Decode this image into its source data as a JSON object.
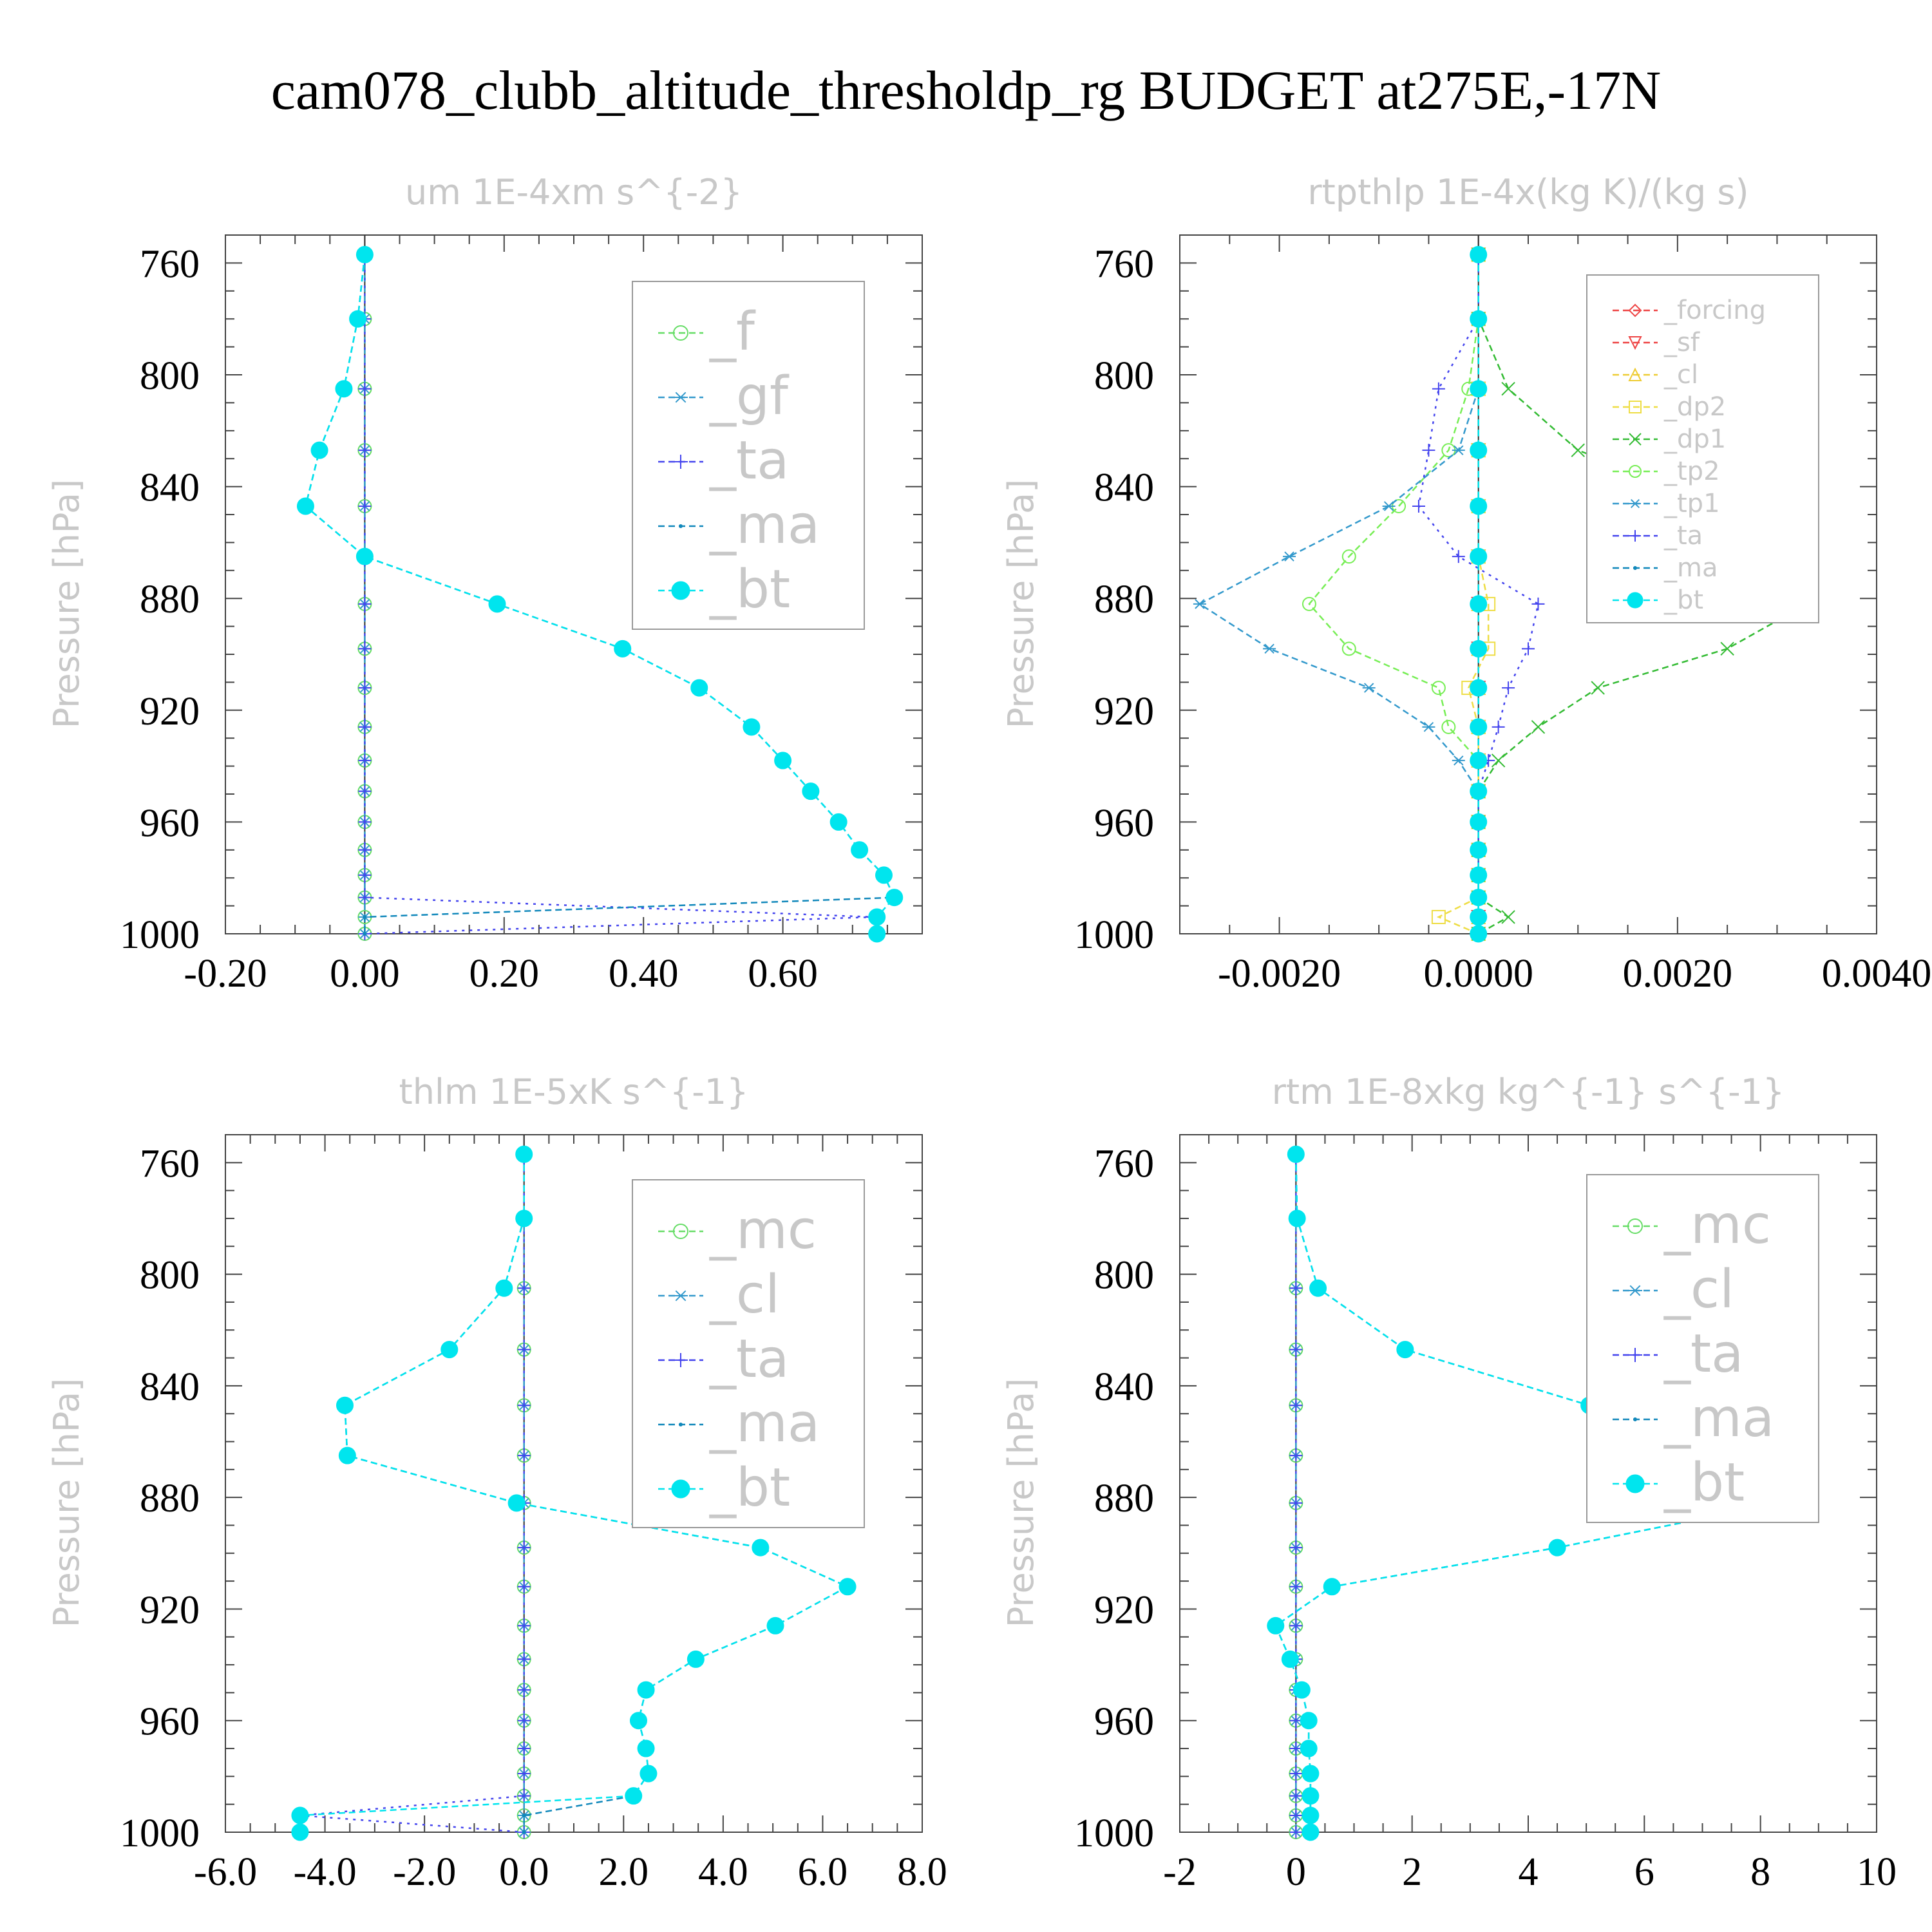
{
  "figure_title": "cam078_clubb_altitude_thresholdp_rg  BUDGET at275E,-17N",
  "ylabel": "Pressure [hPa]",
  "yticks": [
    "760",
    "800",
    "840",
    "880",
    "920",
    "960",
    "1000"
  ],
  "chart_data": [
    {
      "type": "line",
      "title": "um   1E-4xm s^{-2}",
      "xlabel": "",
      "ylabel": "Pressure [hPa]",
      "ylim": [
        1000,
        750
      ],
      "xlim": [
        -0.2,
        0.8
      ],
      "xticks": [
        -0.2,
        0.0,
        0.2,
        0.4,
        0.6
      ],
      "xtick_labels": [
        "-0.20",
        "0.00",
        "0.20",
        "0.40",
        "0.60"
      ],
      "legend": "top-right",
      "grid": false,
      "y": [
        757,
        780,
        805,
        827,
        847,
        865,
        882,
        898,
        912,
        926,
        938,
        949,
        960,
        970,
        979,
        987,
        994,
        1000
      ],
      "series": [
        {
          "name": "_f",
          "color": "#66dd66",
          "marker": "circle",
          "values": [
            0,
            0,
            0,
            0,
            0,
            0,
            0,
            0,
            0,
            0,
            0,
            0,
            0,
            0,
            0,
            0,
            0,
            0
          ]
        },
        {
          "name": "_gf",
          "color": "#3399cc",
          "marker": "star",
          "values": [
            0,
            0,
            0,
            0,
            0,
            0,
            0,
            0,
            0,
            0,
            0,
            0,
            0,
            0,
            0,
            0,
            0,
            0
          ]
        },
        {
          "name": "_ta",
          "color": "#4444ee",
          "marker": "plus",
          "values": [
            0,
            0,
            0,
            0,
            0,
            0,
            0,
            0,
            0,
            0,
            0,
            0,
            0,
            0,
            0,
            0,
            0.73,
            0
          ]
        },
        {
          "name": "_ma",
          "color": "#1188bb",
          "marker": "dot",
          "values": [
            0,
            -0.01,
            -0.03,
            -0.065,
            -0.085,
            0,
            0.19,
            0.37,
            0.48,
            0.555,
            0.6,
            0.64,
            0.68,
            0.71,
            0.745,
            0.76,
            0,
            0
          ]
        },
        {
          "name": "_bt",
          "color": "#00e5ee",
          "marker": "filled",
          "values": [
            0,
            -0.01,
            -0.03,
            -0.065,
            -0.085,
            0,
            0.19,
            0.37,
            0.48,
            0.555,
            0.6,
            0.64,
            0.68,
            0.71,
            0.745,
            0.76,
            0.735,
            0.735
          ]
        }
      ]
    },
    {
      "type": "line",
      "title": "rtpthlp   1E-4x(kg K)/(kg s)",
      "xlabel": "",
      "ylabel": "Pressure [hPa]",
      "ylim": [
        1000,
        750
      ],
      "xlim": [
        -0.003,
        0.004
      ],
      "xticks": [
        -0.002,
        0.0,
        0.002,
        0.004
      ],
      "xtick_labels": [
        "-0.0020",
        "0.0000",
        "0.0020",
        "0.0040"
      ],
      "legend": "top-right",
      "grid": false,
      "y": [
        757,
        780,
        805,
        827,
        847,
        865,
        882,
        898,
        912,
        926,
        938,
        949,
        960,
        970,
        979,
        987,
        994,
        1000
      ],
      "series": [
        {
          "name": "_forcing",
          "color": "#ee4444",
          "marker": "diamond",
          "values": [
            0,
            0,
            0,
            0,
            0,
            0,
            0,
            0,
            0,
            0,
            0,
            0,
            0,
            0,
            0,
            0,
            0,
            0
          ]
        },
        {
          "name": "_sf",
          "color": "#ee4444",
          "marker": "tri-down",
          "values": [
            0,
            0,
            0,
            0,
            0,
            0,
            0,
            0,
            0,
            0,
            0,
            0,
            0,
            0,
            0,
            0,
            0,
            0
          ]
        },
        {
          "name": "_cl",
          "color": "#eecc33",
          "marker": "tri-up",
          "values": [
            0,
            0,
            0,
            0,
            0,
            0,
            0,
            0,
            0,
            0,
            0,
            0,
            0,
            0,
            0,
            0,
            0,
            0
          ]
        },
        {
          "name": "_dp2",
          "color": "#eedd44",
          "marker": "square",
          "values": [
            0,
            0,
            0,
            0,
            0,
            0,
            0.0001,
            0.0001,
            -0.0001,
            0,
            0,
            0,
            0,
            0,
            0,
            0,
            -0.0004,
            0
          ]
        },
        {
          "name": "_dp1",
          "color": "#33bb33",
          "marker": "x",
          "values": [
            0,
            0,
            0.0003,
            0.001,
            0.0025,
            0.0032,
            0.0033,
            0.0025,
            0.0012,
            0.0006,
            0.0002,
            0,
            0,
            0,
            0,
            0,
            0.0003,
            0
          ]
        },
        {
          "name": "_tp2",
          "color": "#77ee55",
          "marker": "circle",
          "values": [
            0,
            0,
            -0.0001,
            -0.0003,
            -0.0008,
            -0.0013,
            -0.0017,
            -0.0013,
            -0.0004,
            -0.0003,
            0,
            0,
            0,
            0,
            0,
            0,
            0,
            0
          ]
        },
        {
          "name": "_tp1",
          "color": "#3399cc",
          "marker": "star",
          "values": [
            0,
            0,
            0,
            -0.0002,
            -0.0009,
            -0.0019,
            -0.0028,
            -0.0021,
            -0.0011,
            -0.0005,
            -0.0002,
            0,
            0,
            0,
            0,
            0,
            0,
            0
          ]
        },
        {
          "name": "_ta",
          "color": "#4444ee",
          "marker": "plus",
          "values": [
            0,
            0,
            -0.0004,
            -0.0005,
            -0.0006,
            -0.0002,
            0.0006,
            0.0005,
            0.0003,
            0.0002,
            0.0001,
            0,
            0,
            0,
            0,
            0,
            0,
            0
          ]
        },
        {
          "name": "_ma",
          "color": "#1188bb",
          "marker": "dot",
          "values": [
            0,
            0,
            0,
            0,
            0,
            0,
            0,
            0,
            0,
            0,
            0,
            0,
            0,
            0,
            0,
            0,
            0,
            0
          ]
        },
        {
          "name": "_bt",
          "color": "#00e5ee",
          "marker": "filled",
          "values": [
            0,
            0,
            0,
            0,
            0,
            0,
            0,
            0,
            0,
            0,
            0,
            0,
            0,
            0,
            0,
            0,
            0,
            0
          ]
        }
      ]
    },
    {
      "type": "line",
      "title": "thlm   1E-5xK s^{-1}",
      "xlabel": "",
      "ylabel": "Pressure [hPa]",
      "ylim": [
        1000,
        750
      ],
      "xlim": [
        -6.0,
        8.0
      ],
      "xticks": [
        -6,
        -4,
        -2,
        0,
        2,
        4,
        6,
        8
      ],
      "xtick_labels": [
        "-6.0",
        "-4.0",
        "-2.0",
        "0.0",
        "2.0",
        "4.0",
        "6.0",
        "8.0"
      ],
      "legend": "top-right",
      "grid": false,
      "y": [
        757,
        780,
        805,
        827,
        847,
        865,
        882,
        898,
        912,
        926,
        938,
        949,
        960,
        970,
        979,
        987,
        994,
        1000
      ],
      "series": [
        {
          "name": "_mc",
          "color": "#66dd66",
          "marker": "circle",
          "values": [
            0,
            0,
            0,
            0,
            0,
            0,
            0,
            0,
            0,
            0,
            0,
            0,
            0,
            0,
            0,
            0,
            0,
            0
          ]
        },
        {
          "name": "_cl",
          "color": "#3399cc",
          "marker": "star",
          "values": [
            0,
            0,
            0,
            0,
            0,
            0,
            0,
            0,
            0,
            0,
            0,
            0,
            0,
            0,
            0,
            0,
            0,
            0
          ]
        },
        {
          "name": "_ta",
          "color": "#4444ee",
          "marker": "plus",
          "values": [
            0,
            0,
            0,
            0,
            0,
            0,
            0,
            0,
            0,
            0,
            0,
            0,
            0,
            0,
            0,
            0,
            -4.5,
            0
          ]
        },
        {
          "name": "_ma",
          "color": "#1188bb",
          "marker": "dot",
          "values": [
            0,
            0,
            -0.4,
            -1.5,
            -3.6,
            -3.55,
            -0.15,
            4.75,
            6.5,
            5.05,
            3.45,
            2.45,
            2.3,
            2.45,
            2.5,
            2.2,
            0,
            0
          ]
        },
        {
          "name": "_bt",
          "color": "#00e5ee",
          "marker": "filled",
          "values": [
            0,
            0,
            -0.4,
            -1.5,
            -3.6,
            -3.55,
            -0.15,
            4.75,
            6.5,
            5.05,
            3.45,
            2.45,
            2.3,
            2.45,
            2.5,
            2.2,
            -4.5,
            -4.5
          ]
        }
      ]
    },
    {
      "type": "line",
      "title": "rtm   1E-8xkg kg^{-1} s^{-1}",
      "xlabel": "",
      "ylabel": "Pressure [hPa]",
      "ylim": [
        1000,
        750
      ],
      "xlim": [
        -2,
        10
      ],
      "xticks": [
        -2,
        0,
        2,
        4,
        6,
        8,
        10
      ],
      "xtick_labels": [
        "-2",
        "0",
        "2",
        "4",
        "6",
        "8",
        "10"
      ],
      "legend": "top-right",
      "grid": false,
      "y": [
        757,
        780,
        805,
        827,
        847,
        865,
        882,
        898,
        912,
        926,
        938,
        949,
        960,
        970,
        979,
        987,
        994,
        1000
      ],
      "series": [
        {
          "name": "_mc",
          "color": "#66dd66",
          "marker": "circle",
          "values": [
            0,
            0,
            0,
            0,
            0,
            0,
            0,
            0,
            0,
            0,
            0,
            0,
            0,
            0,
            0,
            0,
            0,
            0
          ]
        },
        {
          "name": "_cl",
          "color": "#3399cc",
          "marker": "star",
          "values": [
            0,
            0,
            0,
            0,
            0,
            0,
            0,
            0,
            0,
            0,
            0,
            0,
            0,
            0,
            0,
            0,
            0,
            0
          ]
        },
        {
          "name": "_ta",
          "color": "#4444ee",
          "marker": "plus",
          "values": [
            0,
            0,
            0,
            0,
            0,
            0,
            0,
            0,
            0,
            0,
            0,
            0,
            0,
            0,
            0,
            0,
            0,
            0
          ]
        },
        {
          "name": "_ma",
          "color": "#1188bb",
          "marker": "dot",
          "values": [
            0,
            0.02,
            0.38,
            1.88,
            5.05,
            7.8,
            8.35,
            4.5,
            0.62,
            -0.35,
            -0.1,
            0.1,
            0.22,
            0.22,
            0.25,
            0.25,
            0.25,
            0.25
          ]
        },
        {
          "name": "_bt",
          "color": "#00e5ee",
          "marker": "filled",
          "values": [
            0,
            0.02,
            0.38,
            1.88,
            5.05,
            7.8,
            8.35,
            4.5,
            0.62,
            -0.35,
            -0.1,
            0.1,
            0.22,
            0.22,
            0.25,
            0.25,
            0.25,
            0.25
          ]
        }
      ]
    }
  ]
}
